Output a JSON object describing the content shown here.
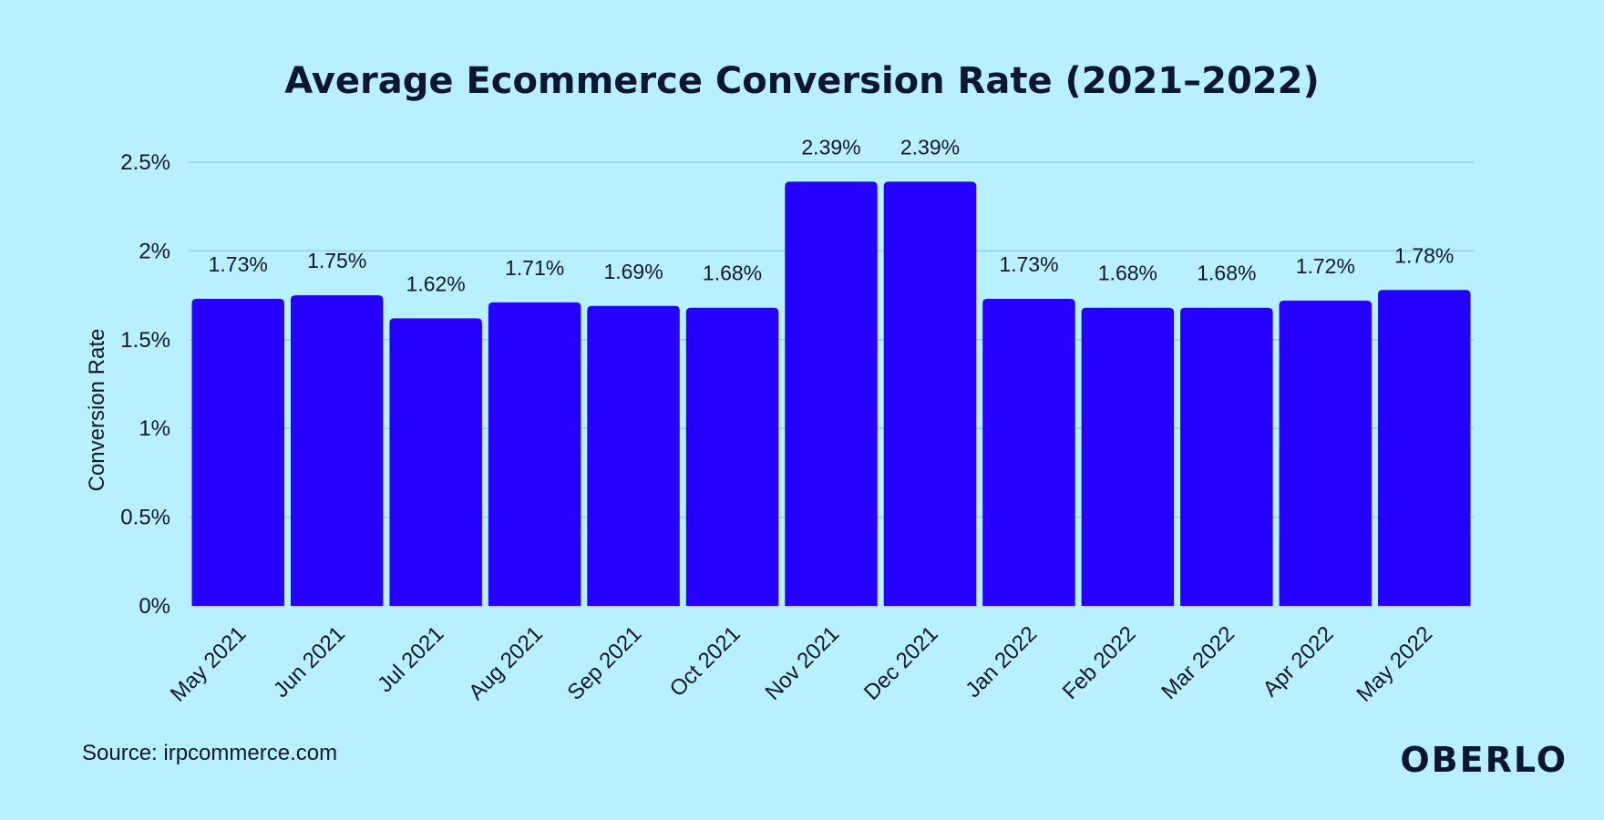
{
  "chart_data": {
    "type": "bar",
    "title": "Average Ecommerce Conversion Rate (2021–2022)",
    "xlabel": "",
    "ylabel": "Conversion Rate",
    "categories": [
      "May 2021",
      "Jun 2021",
      "Jul 2021",
      "Aug 2021",
      "Sep 2021",
      "Oct 2021",
      "Nov 2021",
      "Dec 2021",
      "Jan 2022",
      "Feb 2022",
      "Mar 2022",
      "Apr 2022",
      "May 2022"
    ],
    "values": [
      1.73,
      1.75,
      1.62,
      1.71,
      1.69,
      1.68,
      2.39,
      2.39,
      1.73,
      1.68,
      1.68,
      1.72,
      1.78
    ],
    "data_labels": [
      "1.73%",
      "1.75%",
      "1.62%",
      "1.71%",
      "1.69%",
      "1.68%",
      "2.39%",
      "2.39%",
      "1.73%",
      "1.68%",
      "1.68%",
      "1.72%",
      "1.78%"
    ],
    "yticks": [
      0,
      0.5,
      1,
      1.5,
      2,
      2.5
    ],
    "ytick_labels": [
      "0%",
      "0.5%",
      "1%",
      "1.5%",
      "2%",
      "2.5%"
    ],
    "ylim": [
      0,
      2.5
    ],
    "grid": true,
    "bar_color": "#2500ff",
    "grid_color": "#8fd3ea",
    "background": "#b8f0fe"
  },
  "footer": {
    "source": "Source: irpcommerce.com",
    "brand": "OBERLO"
  }
}
